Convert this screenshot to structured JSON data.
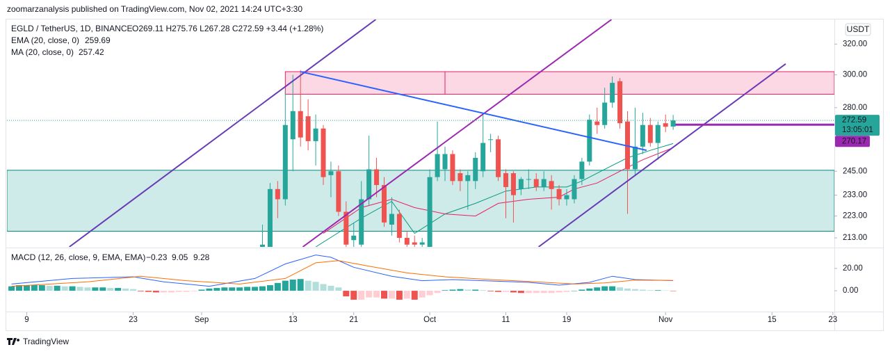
{
  "chart_data": {
    "type": "candlestick",
    "published": "zoomarzanalysis published on TradingView.com, Nov 02, 2021 14:24 UTC+3:30",
    "symbol": "EGLD / TetherUS, 1D, BINANCE",
    "ohlc_text": "O269.11  H275.76  L267.28  C272.59  +3.44 (+1.28%)",
    "indicators": [
      {
        "name": "EMA (20, close, 0)",
        "value": "259.69",
        "color": "#089981"
      },
      {
        "name": "MA (20, close, 0)",
        "value": "257.42",
        "color": "#e91e63"
      }
    ],
    "currency": "USDT",
    "countdown": "13:05:01",
    "brand": "TradingView",
    "log_scale": true,
    "grid": false,
    "up_color": "#26a69a",
    "down_color": "#ef5350",
    "xlim": [
      -25.6,
      83.2
    ],
    "xticks": [
      {
        "value": -23,
        "label": "9"
      },
      {
        "value": -9,
        "label": "23"
      },
      {
        "value": 0,
        "label": "Sep"
      },
      {
        "value": 12,
        "label": "13"
      },
      {
        "value": 20,
        "label": "21"
      },
      {
        "value": 30,
        "label": "Oct"
      },
      {
        "value": 40,
        "label": "11"
      },
      {
        "value": 48,
        "label": "19"
      },
      {
        "value": 61,
        "label": "Nov"
      },
      {
        "value": 75,
        "label": "15"
      },
      {
        "value": 83,
        "label": "23"
      }
    ],
    "ylim": [
      209,
      337
    ],
    "yticks": [
      {
        "value": 213,
        "label": "213.00"
      },
      {
        "value": 223,
        "label": "223.00"
      },
      {
        "value": 233,
        "label": "233.00"
      },
      {
        "value": 245,
        "label": "245.00"
      },
      {
        "value": 280,
        "label": "280.00"
      },
      {
        "value": 300,
        "label": "300.00"
      },
      {
        "value": 320,
        "label": "320.00"
      }
    ],
    "candles": {
      "x": [
        8,
        9,
        10,
        11,
        12,
        13,
        14,
        15,
        16,
        17,
        18,
        19,
        20,
        21,
        22,
        23,
        24,
        25,
        26,
        27,
        28,
        29,
        30,
        31,
        32,
        33,
        34,
        35,
        36,
        37,
        38,
        39,
        40,
        41,
        42,
        43,
        44,
        45,
        46,
        47,
        48,
        49,
        50,
        51,
        52,
        53,
        54,
        55,
        56,
        57,
        58,
        59,
        60,
        61,
        62
      ],
      "open": [
        200,
        208,
        236,
        231,
        262,
        278,
        275,
        261,
        268,
        243,
        245,
        225,
        212,
        210,
        231,
        246,
        238,
        219,
        224,
        213,
        211,
        210,
        208,
        242,
        246,
        254,
        244,
        240,
        240,
        245,
        262,
        262,
        244,
        244,
        236,
        241,
        241,
        237,
        240,
        236,
        231,
        231,
        241,
        250,
        272,
        270,
        283,
        296,
        272,
        246,
        258,
        270,
        260,
        271,
        269.11
      ],
      "high": [
        219,
        239,
        240,
        290,
        300,
        303,
        285,
        276,
        270,
        250,
        248,
        230,
        220,
        240,
        264,
        252,
        242,
        232,
        226,
        216,
        214,
        213,
        246,
        272,
        258,
        256,
        246,
        245,
        255,
        277,
        265,
        264,
        246,
        245,
        242,
        246,
        244,
        245,
        243,
        238,
        236,
        243,
        252,
        276,
        280,
        292,
        299,
        298,
        278,
        280,
        277,
        274,
        272,
        276,
        275.76
      ],
      "low": [
        190,
        205,
        222,
        228,
        245,
        258,
        256,
        248,
        238,
        232,
        223,
        205,
        205,
        208,
        228,
        232,
        218,
        214,
        211,
        206,
        206,
        205,
        205,
        240,
        240,
        238,
        235,
        226,
        236,
        242,
        255,
        240,
        222,
        220,
        233,
        236,
        235,
        235,
        226,
        228,
        228,
        229,
        238,
        248,
        265,
        268,
        280,
        268,
        224,
        243,
        254,
        258,
        251,
        266,
        267.28
      ],
      "close": [
        210,
        236,
        231,
        270,
        278,
        263,
        261,
        268,
        242,
        245,
        225,
        210,
        214,
        231,
        246,
        238,
        220,
        224,
        213,
        210,
        210,
        211,
        242,
        254,
        254,
        240,
        240,
        243,
        252,
        260,
        262,
        242,
        237,
        233,
        241,
        241,
        237,
        241,
        236,
        231,
        233,
        241,
        250,
        273,
        270,
        283,
        295,
        271,
        246,
        258,
        270,
        260,
        270,
        269,
        272.59
      ]
    },
    "series": [
      {
        "name": "EMA",
        "color": "#089981",
        "x": [
          15,
          21,
          25,
          28,
          32,
          36,
          40,
          44,
          48,
          50,
          53,
          56,
          59,
          62
        ],
        "values": [
          209,
          222,
          230,
          215,
          224,
          229,
          235,
          237,
          237,
          240,
          246,
          252,
          256,
          259.69
        ]
      },
      {
        "name": "MA",
        "color": "#e91e63",
        "x": [
          16,
          21,
          25,
          28,
          32,
          36,
          39,
          43,
          47,
          49,
          52,
          55,
          58,
          62
        ],
        "values": [
          215,
          227,
          231,
          227,
          224,
          223,
          229,
          231,
          232,
          236,
          239,
          245,
          251,
          257.42
        ]
      }
    ],
    "drawings": {
      "zones": [
        {
          "x": [
            11,
            32
          ],
          "y": [
            288,
            302
          ],
          "fill": "rgba(242,54,120,0.2)",
          "stroke": "#e91e63"
        },
        {
          "x": [
            32,
            83.2
          ],
          "y": [
            288,
            302
          ],
          "fill": "rgba(242,54,120,0.2)",
          "stroke": "#e91e63"
        },
        {
          "x": [
            -25.6,
            83.2
          ],
          "y": [
            216,
            245.5
          ],
          "fill": "rgba(38,166,154,0.22)",
          "stroke": "#00897b"
        }
      ],
      "lines": [
        {
          "x": [
            -17.4,
            22.9
          ],
          "y": [
            209,
            337
          ],
          "color": "#673ab7"
        },
        {
          "x": [
            13.3,
            53.9
          ],
          "y": [
            209,
            337
          ],
          "color": "#9c27b0"
        },
        {
          "x": [
            44.3,
            76.8
          ],
          "y": [
            209,
            307
          ],
          "color": "#673ab7"
        },
        {
          "x": [
            13,
            58.5
          ],
          "y": [
            302,
            256
          ],
          "color": "#2962ff"
        }
      ],
      "level": {
        "value": 270.17,
        "x": [
          62.3,
          83.2
        ],
        "color": "#9c27b0"
      }
    },
    "macd": {
      "title": "MACD (12, 26, close, 9, EMA, EMA)",
      "readings": [
        {
          "text": "−0.23",
          "color": "#f28b82"
        },
        {
          "text": "9.05",
          "color": "#2962ff"
        },
        {
          "text": "9.28",
          "color": "#ff6d00"
        }
      ],
      "ylim": [
        -18,
        38
      ],
      "yticks": [
        {
          "value": 0,
          "label": "0.00"
        },
        {
          "value": 20,
          "label": "20.00"
        }
      ],
      "hist_colors": [
        "#26a69a",
        "#b2dfdb",
        "#ffcdd2",
        "#ef5350"
      ],
      "histogram": {
        "x": [
          -25,
          -24,
          -23,
          -22,
          -21,
          -20,
          -19,
          -18,
          -17,
          -16,
          -15,
          -14,
          -13,
          -12,
          -11,
          -10,
          -9,
          -8,
          -7,
          -6,
          -5,
          -4,
          -3,
          -2,
          -1,
          0,
          1,
          2,
          3,
          4,
          5,
          6,
          7,
          8,
          9,
          10,
          11,
          12,
          13,
          14,
          15,
          16,
          17,
          18,
          19,
          20,
          21,
          22,
          23,
          24,
          25,
          26,
          27,
          28,
          29,
          30,
          31,
          32,
          33,
          34,
          35,
          36,
          37,
          38,
          39,
          40,
          41,
          42,
          43,
          44,
          45,
          46,
          47,
          48,
          49,
          50,
          51,
          52,
          53,
          54,
          55,
          56,
          57,
          58,
          59,
          60,
          61,
          62
        ],
        "values": [
          4,
          5,
          5,
          5,
          5,
          4.5,
          4.5,
          4,
          4,
          3.5,
          3,
          3,
          3,
          2.5,
          2.5,
          2,
          1.5,
          -0.5,
          -1,
          -1.5,
          -1.5,
          -1.5,
          -1,
          -1,
          -0.5,
          1,
          2,
          2.5,
          3,
          3,
          3,
          3.5,
          3.5,
          4,
          5,
          7,
          9,
          10,
          10.5,
          9,
          8,
          6,
          4.5,
          3,
          -5,
          -8,
          -8,
          -6,
          -6,
          -7,
          -7,
          -8,
          -7,
          -8,
          -6,
          -4,
          -2,
          0.5,
          1,
          1.5,
          1,
          1,
          0.5,
          -0.5,
          -1,
          -1,
          -1.5,
          -2,
          -2,
          -2,
          -2,
          -2,
          -1.5,
          -1,
          0,
          1,
          2,
          3,
          4,
          4,
          3,
          2,
          1.5,
          1,
          0.5,
          0.5,
          0.3,
          -0.23
        ]
      },
      "lines": [
        {
          "name": "MACD",
          "color": "#2962ff",
          "x": [
            -25,
            -17,
            -9,
            -5,
            1,
            7,
            11,
            15,
            17,
            20,
            25,
            29,
            33,
            37,
            43,
            47,
            51,
            54,
            57,
            62
          ],
          "values": [
            6,
            11,
            12.5,
            8,
            4,
            11,
            24,
            32,
            30,
            21,
            13,
            9,
            10,
            9,
            7.5,
            5,
            7.5,
            13,
            10,
            9.05
          ]
        },
        {
          "name": "Signal",
          "color": "#ff6d00",
          "x": [
            -25,
            -15,
            -8,
            -2,
            5,
            11,
            15,
            18,
            22,
            27,
            32,
            38,
            44,
            49,
            53,
            57,
            62
          ],
          "values": [
            4,
            8,
            13,
            9,
            6,
            11,
            25,
            27,
            22,
            16,
            12.5,
            10,
            8,
            6,
            7,
            9.5,
            9.28
          ]
        }
      ]
    }
  }
}
